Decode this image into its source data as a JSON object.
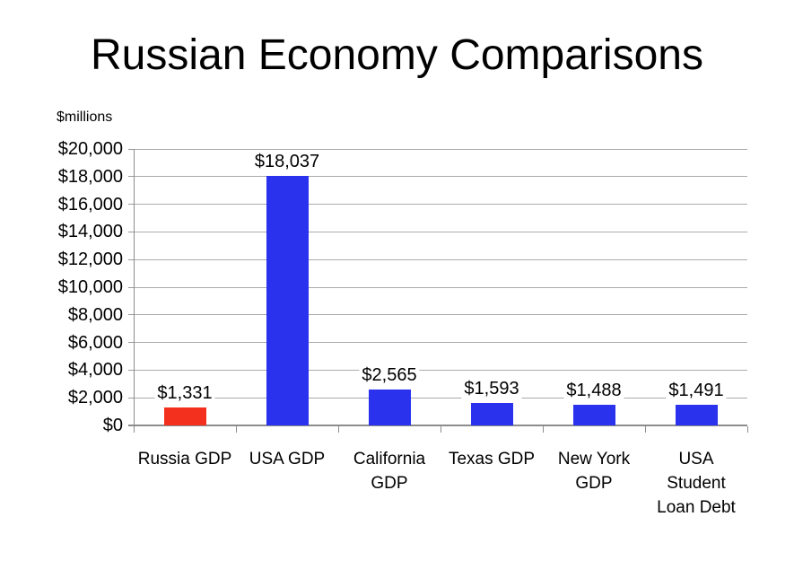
{
  "chart_data": {
    "type": "bar",
    "title": "Russian Economy Comparisons",
    "ylabel": "$millions",
    "xlabel": "",
    "categories": [
      "Russia GDP",
      "USA GDP",
      "California GDP",
      "Texas GDP",
      "New York GDP",
      "USA Student Loan Debt"
    ],
    "category_label_lines": [
      [
        "Russia GDP"
      ],
      [
        "USA GDP"
      ],
      [
        "California",
        "GDP"
      ],
      [
        "Texas GDP"
      ],
      [
        "New York",
        "GDP"
      ],
      [
        "USA",
        "Student",
        "Loan Debt"
      ]
    ],
    "values": [
      1331,
      18037,
      2565,
      1593,
      1488,
      1491
    ],
    "value_labels": [
      "$1,331",
      "$18,037",
      "$2,565",
      "$1,593",
      "$1,488",
      "$1,491"
    ],
    "bar_colors": [
      "#f3301d",
      "#2a32ee",
      "#2a32ee",
      "#2a32ee",
      "#2a32ee",
      "#2a32ee"
    ],
    "ylim": [
      0,
      20000
    ],
    "ytick_step": 2000,
    "ytick_labels": [
      "$0",
      "$2,000",
      "$4,000",
      "$6,000",
      "$8,000",
      "$10,000",
      "$12,000",
      "$14,000",
      "$16,000",
      "$18,000",
      "$20,000"
    ],
    "grid": true,
    "legend": "none",
    "colors": {
      "bar_default": "#2a32ee",
      "bar_highlight": "#f3301d",
      "gridline": "#ababab",
      "axis": "#8c8c8c",
      "text": "#000000",
      "background": "#ffffff"
    }
  }
}
